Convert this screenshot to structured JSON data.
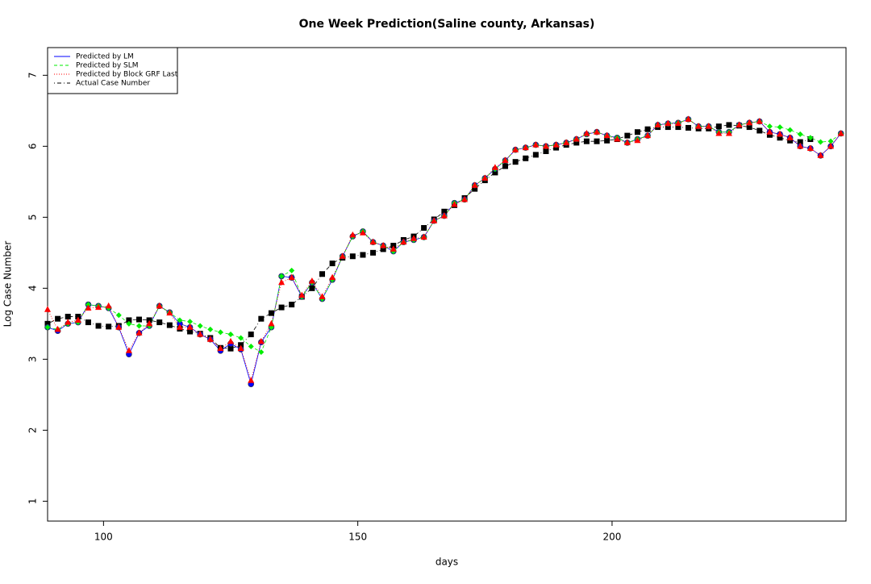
{
  "chart_data": {
    "type": "line",
    "title": "One Week Prediction(Saline county, Arkansas)",
    "x_label": "days",
    "y_label": "Log Case Number",
    "xlim": [
      89,
      246
    ],
    "ylim": [
      0.72,
      7.39
    ],
    "xticks": [
      100,
      150,
      200
    ],
    "yticks": [
      1,
      2,
      3,
      4,
      5,
      6,
      7
    ],
    "legend": "top-left",
    "x": [
      89,
      91,
      93,
      95,
      97,
      99,
      101,
      103,
      105,
      107,
      109,
      111,
      113,
      115,
      117,
      119,
      121,
      123,
      125,
      127,
      129,
      131,
      133,
      135,
      137,
      139,
      141,
      143,
      145,
      147,
      149,
      151,
      153,
      155,
      157,
      159,
      161,
      163,
      165,
      167,
      169,
      171,
      173,
      175,
      177,
      179,
      181,
      183,
      185,
      187,
      189,
      191,
      193,
      195,
      197,
      199,
      201,
      203,
      205,
      207,
      209,
      211,
      213,
      215,
      217,
      219,
      221,
      223,
      225,
      227,
      229,
      231,
      233,
      235,
      237,
      239,
      241,
      243,
      245
    ],
    "series": [
      {
        "name": "Actual Case Number",
        "color": "#000000",
        "marker": "square",
        "dash": "dotdash",
        "values": [
          3.5,
          3.57,
          3.6,
          3.6,
          3.52,
          3.47,
          3.46,
          3.47,
          3.55,
          3.56,
          3.55,
          3.52,
          3.48,
          3.43,
          3.39,
          3.36,
          3.3,
          3.16,
          3.15,
          3.2,
          3.35,
          3.57,
          3.65,
          3.73,
          3.77,
          3.88,
          4.0,
          4.2,
          4.35,
          4.43,
          4.45,
          4.47,
          4.5,
          4.55,
          4.6,
          4.68,
          4.73,
          4.85,
          4.97,
          5.08,
          5.17,
          5.27,
          5.4,
          5.52,
          5.63,
          5.72,
          5.78,
          5.83,
          5.88,
          5.93,
          5.98,
          6.02,
          6.05,
          6.07,
          6.07,
          6.08,
          6.1,
          6.15,
          6.2,
          6.24,
          6.27,
          6.27,
          6.27,
          6.26,
          6.25,
          6.25,
          6.28,
          6.3,
          6.29,
          6.27,
          6.22,
          6.16,
          6.12,
          6.08,
          6.06,
          6.1,
          null,
          null,
          null
        ]
      },
      {
        "name": "Predicted by LM",
        "color": "#0000ff",
        "marker": "circle",
        "dash": "solid",
        "values": [
          3.45,
          3.4,
          3.5,
          3.52,
          3.77,
          3.75,
          3.72,
          3.45,
          3.07,
          3.37,
          3.47,
          3.75,
          3.66,
          3.5,
          3.45,
          3.35,
          3.28,
          3.12,
          3.22,
          3.14,
          2.65,
          3.24,
          3.45,
          4.17,
          4.15,
          3.88,
          4.08,
          3.85,
          4.12,
          4.45,
          4.73,
          4.8,
          4.65,
          4.6,
          4.52,
          4.65,
          4.68,
          4.72,
          4.95,
          5.02,
          5.2,
          5.25,
          5.45,
          5.55,
          5.68,
          5.8,
          5.95,
          5.98,
          6.02,
          6.0,
          6.02,
          6.05,
          6.1,
          6.17,
          6.2,
          6.15,
          6.12,
          6.05,
          6.1,
          6.15,
          6.3,
          6.32,
          6.33,
          6.38,
          6.28,
          6.28,
          6.2,
          6.2,
          6.3,
          6.33,
          6.35,
          6.2,
          6.17,
          6.12,
          6.0,
          5.97,
          5.87,
          6.0,
          6.18
        ]
      },
      {
        "name": "Predicted by SLM",
        "color": "#00ee00",
        "marker": "diamond",
        "dash": "dashed",
        "values": [
          3.45,
          3.42,
          3.5,
          3.52,
          3.77,
          3.75,
          3.72,
          3.62,
          3.5,
          3.47,
          3.47,
          3.75,
          3.66,
          3.55,
          3.53,
          3.47,
          3.42,
          3.38,
          3.35,
          3.3,
          3.18,
          3.1,
          3.45,
          4.17,
          4.25,
          3.88,
          4.08,
          3.85,
          4.12,
          4.45,
          4.73,
          4.8,
          4.65,
          4.6,
          4.52,
          4.65,
          4.68,
          4.72,
          4.95,
          5.02,
          5.2,
          5.25,
          5.45,
          5.55,
          5.68,
          5.8,
          5.95,
          5.98,
          6.02,
          6.0,
          6.02,
          6.05,
          6.1,
          6.17,
          6.2,
          6.15,
          6.12,
          6.05,
          6.1,
          6.15,
          6.3,
          6.32,
          6.33,
          6.38,
          6.28,
          6.28,
          6.2,
          6.2,
          6.3,
          6.33,
          6.35,
          6.28,
          6.27,
          6.23,
          6.17,
          6.12,
          6.06,
          6.07,
          6.18
        ]
      },
      {
        "name": "Predicted by Block GRF Last",
        "color": "#ff0000",
        "marker": "triangle",
        "dash": "dotted",
        "values": [
          3.7,
          3.42,
          3.52,
          3.55,
          3.72,
          3.73,
          3.75,
          3.45,
          3.12,
          3.37,
          3.5,
          3.75,
          3.65,
          3.45,
          3.45,
          3.35,
          3.28,
          3.15,
          3.25,
          3.15,
          2.7,
          3.25,
          3.5,
          4.08,
          4.15,
          3.9,
          4.1,
          3.88,
          4.15,
          4.45,
          4.75,
          4.78,
          4.65,
          4.6,
          4.55,
          4.65,
          4.7,
          4.72,
          4.95,
          5.02,
          5.18,
          5.25,
          5.45,
          5.55,
          5.7,
          5.8,
          5.95,
          5.98,
          6.02,
          6.0,
          6.02,
          6.05,
          6.1,
          6.18,
          6.2,
          6.15,
          6.1,
          6.05,
          6.08,
          6.15,
          6.3,
          6.32,
          6.32,
          6.38,
          6.28,
          6.28,
          6.18,
          6.18,
          6.3,
          6.33,
          6.35,
          6.2,
          6.17,
          6.12,
          6.0,
          5.97,
          5.87,
          6.0,
          6.18
        ]
      }
    ]
  }
}
